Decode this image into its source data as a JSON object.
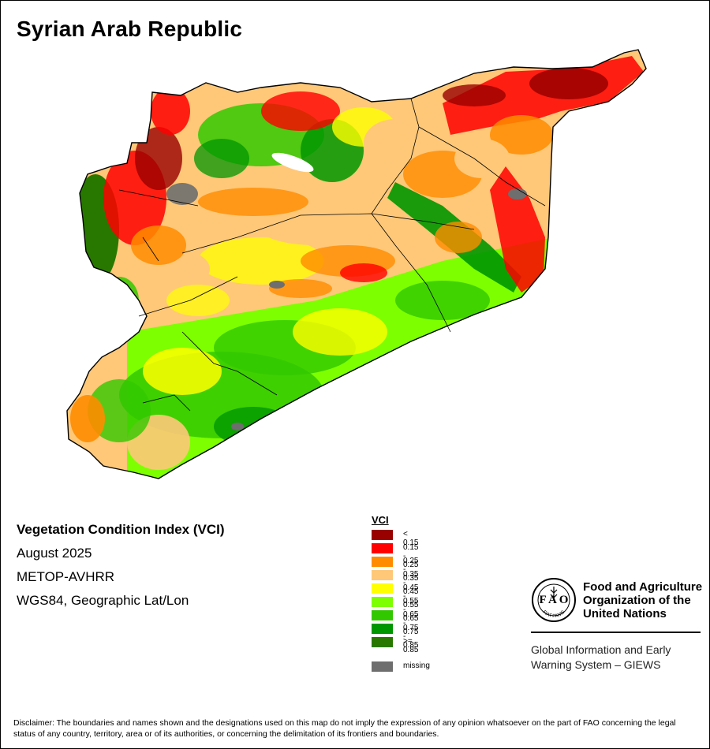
{
  "title": "Syrian Arab Republic",
  "info": {
    "index_name": "Vegetation Condition Index (VCI)",
    "period": "August 2025",
    "sensor": "METOP-AVHRR",
    "projection": "WGS84, Geographic Lat/Lon"
  },
  "legend": {
    "title": "VCI",
    "classes": [
      {
        "label": "< 0.15",
        "color": "#990000"
      },
      {
        "label": "0.15 - 0.25",
        "color": "#ff0000"
      },
      {
        "label": "0.25 - 0.35",
        "color": "#ff8c00"
      },
      {
        "label": "0.35 - 0.45",
        "color": "#ffc878"
      },
      {
        "label": "0.45 - 0.55",
        "color": "#ffff00"
      },
      {
        "label": "0.55 - 0.65",
        "color": "#7dff00"
      },
      {
        "label": "0.65 - 0.75",
        "color": "#32c800"
      },
      {
        "label": "0.75 - 0.85",
        "color": "#009600"
      },
      {
        "label": ">= 0.85",
        "color": "#287800"
      }
    ],
    "missing": {
      "label": "missing",
      "color": "#6e6e6e"
    }
  },
  "fao": {
    "name_lines": [
      "Food and Agriculture",
      "Organization of the",
      "United Nations"
    ],
    "logo_text": "FIAT PANIS",
    "system_lines": [
      "Global Information and Early",
      "Warning System – GIEWS"
    ]
  },
  "disclaimer": "Disclaimer: The boundaries and names shown and the designations used on this map do not imply the expression of any opinion whatsoever on the part of FAO concerning the legal status of any country, territory, area or of its authorities, or concerning the delimitation of its frontiers and boundaries."
}
